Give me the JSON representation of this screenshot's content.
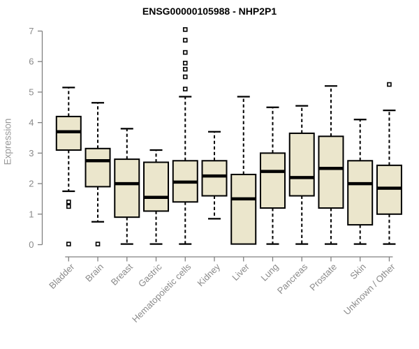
{
  "chart_data": {
    "type": "boxplot",
    "title": "ENSG00000105988 - NHP2P1",
    "ylabel": "Expression",
    "xlabel": "",
    "ylim": [
      0,
      7
    ],
    "yticks": [
      0,
      1,
      2,
      3,
      4,
      5,
      6,
      7
    ],
    "grid": false,
    "legend": "none",
    "categories": [
      "Bladder",
      "Brain",
      "Breast",
      "Gastric",
      "Hematopoietic cells",
      "Kidney",
      "Liver",
      "Lung",
      "Pancreas",
      "Prostate",
      "Skin",
      "Unknown / Other"
    ],
    "series": [
      {
        "category": "Bladder",
        "low": 1.75,
        "q1": 3.1,
        "median": 3.7,
        "q3": 4.2,
        "high": 5.15,
        "outliers": [
          1.4,
          1.25,
          0.02
        ]
      },
      {
        "category": "Brain",
        "low": 0.75,
        "q1": 1.9,
        "median": 2.75,
        "q3": 3.15,
        "high": 4.65,
        "outliers": [
          0.02
        ]
      },
      {
        "category": "Breast",
        "low": 0.02,
        "q1": 0.9,
        "median": 2.0,
        "q3": 2.8,
        "high": 3.8,
        "outliers": []
      },
      {
        "category": "Gastric",
        "low": 0.02,
        "q1": 1.1,
        "median": 1.55,
        "q3": 2.7,
        "high": 3.1,
        "outliers": []
      },
      {
        "category": "Hematopoietic cells",
        "low": 0.02,
        "q1": 1.4,
        "median": 2.05,
        "q3": 2.75,
        "high": 4.85,
        "outliers": [
          5.1,
          5.5,
          5.75,
          5.95,
          6.3,
          6.7,
          7.05
        ]
      },
      {
        "category": "Kidney",
        "low": 0.85,
        "q1": 1.6,
        "median": 2.25,
        "q3": 2.75,
        "high": 3.7,
        "outliers": []
      },
      {
        "category": "Liver",
        "low": 0.02,
        "q1": 0.02,
        "median": 1.5,
        "q3": 2.3,
        "high": 4.85,
        "outliers": []
      },
      {
        "category": "Lung",
        "low": 0.02,
        "q1": 1.2,
        "median": 2.4,
        "q3": 3.0,
        "high": 4.5,
        "outliers": []
      },
      {
        "category": "Pancreas",
        "low": 0.02,
        "q1": 1.6,
        "median": 2.2,
        "q3": 3.65,
        "high": 4.55,
        "outliers": []
      },
      {
        "category": "Prostate",
        "low": 0.02,
        "q1": 1.2,
        "median": 2.5,
        "q3": 3.55,
        "high": 5.2,
        "outliers": []
      },
      {
        "category": "Skin",
        "low": 0.02,
        "q1": 0.65,
        "median": 2.0,
        "q3": 2.75,
        "high": 4.1,
        "outliers": []
      },
      {
        "category": "Unknown / Other",
        "low": 0.02,
        "q1": 1.0,
        "median": 1.85,
        "q3": 2.6,
        "high": 4.4,
        "outliers": [
          5.25
        ]
      }
    ],
    "colors": {
      "box_fill": "#EBE6CC",
      "box_border": "#000000",
      "median": "#000000",
      "whisker": "#000000",
      "outlier_stroke": "#000000",
      "outlier_fill": "#ffffff",
      "axis_line": "#808080",
      "tick_label": "#8a8a8a",
      "category_label": "#8a8a8a",
      "title": "#000000",
      "background": "#ffffff"
    }
  }
}
